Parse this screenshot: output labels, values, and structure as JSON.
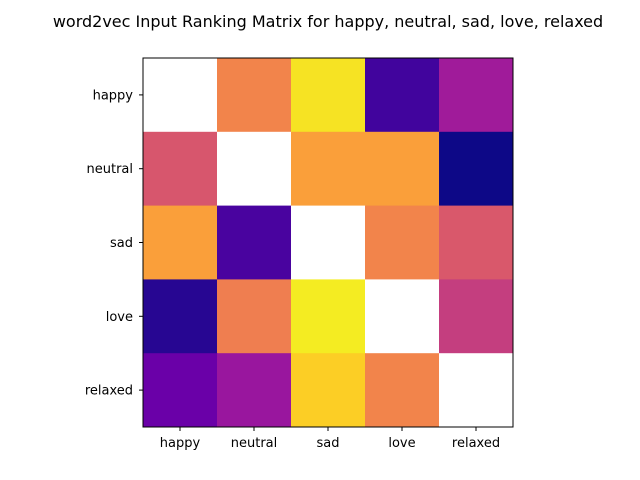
{
  "chart_data": {
    "type": "heatmap",
    "title": "word2vec Input Ranking Matrix for happy, neutral, sad, love, relaxed",
    "xlabel": "",
    "ylabel": "",
    "x_categories": [
      "happy",
      "neutral",
      "sad",
      "love",
      "relaxed"
    ],
    "y_categories": [
      "happy",
      "neutral",
      "sad",
      "love",
      "relaxed"
    ],
    "colormap": "plasma",
    "value_range": [
      0,
      1
    ],
    "diagonal": "blank",
    "grid": false,
    "values": [
      [
        null,
        0.7,
        0.95,
        0.1,
        0.35
      ],
      [
        0.55,
        null,
        0.78,
        0.78,
        0.0
      ],
      [
        0.78,
        0.12,
        null,
        0.7,
        0.56
      ],
      [
        0.05,
        0.68,
        0.97,
        null,
        0.47
      ],
      [
        0.2,
        0.33,
        0.9,
        0.7,
        null
      ]
    ],
    "colors": {
      "background": "#ffffff",
      "diagonal": "#ffffff",
      "frame": "#000000"
    }
  }
}
